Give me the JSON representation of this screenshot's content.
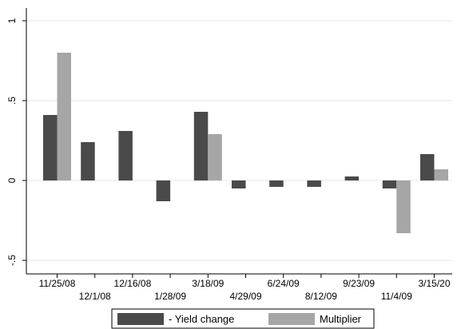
{
  "chart_data": {
    "type": "bar",
    "title": "",
    "xlabel": "",
    "ylabel": "",
    "ylim": [
      -0.5,
      1.0
    ],
    "y_ticks": [
      -0.5,
      0,
      0.5,
      1
    ],
    "y_tick_labels": [
      "-.5",
      "0",
      ".5",
      "1"
    ],
    "grid": true,
    "legend_position": "bottom",
    "categories": [
      "11/25/08",
      "12/1/08",
      "12/16/08",
      "1/28/09",
      "3/18/09",
      "4/29/09",
      "6/24/09",
      "8/12/09",
      "9/23/09",
      "11/4/09",
      "3/15/20"
    ],
    "series": [
      {
        "name": "- Yield change",
        "color": "#4a4a4a",
        "values": [
          0.41,
          0.24,
          0.31,
          -0.13,
          0.43,
          -0.05,
          -0.04,
          -0.04,
          0.025,
          -0.05,
          0.165
        ]
      },
      {
        "name": "Multiplier",
        "color": "#a6a6a6",
        "values": [
          0.8,
          null,
          null,
          null,
          0.29,
          null,
          null,
          null,
          null,
          -0.33,
          0.07
        ]
      }
    ]
  }
}
